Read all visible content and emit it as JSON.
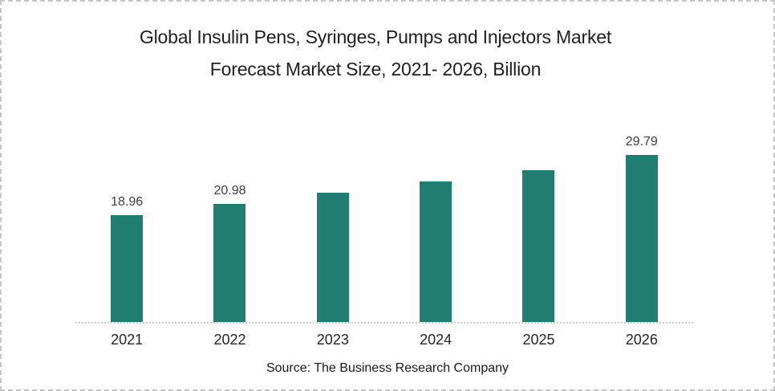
{
  "chart_data": {
    "type": "bar",
    "title": "Global Insulin Pens, Syringes, Pumps and Injectors Market Forecast Market Size, 2021- 2026, Billion",
    "title_line1": "Global Insulin Pens, Syringes, Pumps and Injectors Market",
    "title_line2": "Forecast Market Size, 2021- 2026, Billion",
    "categories": [
      "2021",
      "2022",
      "2023",
      "2024",
      "2025",
      "2026"
    ],
    "values": [
      18.96,
      20.98,
      23.0,
      25.0,
      27.0,
      29.79
    ],
    "data_labels": [
      "18.96",
      "20.98",
      "",
      "",
      "",
      "29.79"
    ],
    "xlabel": "",
    "ylabel": "",
    "ylim": [
      0,
      35
    ],
    "grid": false,
    "legend": "none",
    "bar_color": "#217D71",
    "data_label_color": "#404040",
    "axis_line_color": "#cfcfcf",
    "source": "Source: The Business Research Company"
  }
}
